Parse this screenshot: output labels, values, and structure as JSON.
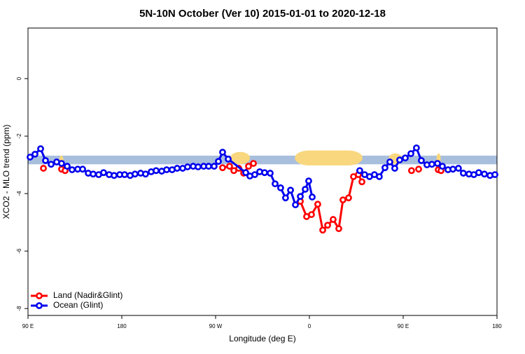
{
  "chart_data": {
    "type": "line",
    "title": "5N-10N October (Ver 10)   2015-01-01 to 2020-12-18",
    "x_label": "Longitude (deg E)",
    "y_label": "XCO2 - MLO trend (ppm)",
    "xlim": [
      90,
      540
    ],
    "ylim": [
      -8.24,
      1.76
    ],
    "xticks": [
      {
        "value": 90,
        "label": "90 E"
      },
      {
        "value": 180,
        "label": "180"
      },
      {
        "value": 270,
        "label": "90 W"
      },
      {
        "value": 360,
        "label": "0"
      },
      {
        "value": 450,
        "label": "90 E"
      },
      {
        "value": 540,
        "label": "180"
      }
    ],
    "yticks": [
      0,
      -2,
      -4,
      -6,
      -8
    ],
    "legend": "bottom-left",
    "band": {
      "ylim": [
        -2.98,
        -2.68
      ],
      "color": "#a8bedd"
    },
    "highlights": [
      {
        "xlim": [
          284,
          303
        ],
        "ylim": [
          -2.98,
          -2.55
        ],
        "color": "#f9d77e"
      },
      {
        "xlim": [
          346,
          411
        ],
        "ylim": [
          -3.02,
          -2.5
        ],
        "color": "#f9d77e"
      },
      {
        "xlim": [
          120,
          124
        ],
        "ylim": [
          -2.98,
          -2.68
        ],
        "color": "#f9d77e"
      },
      {
        "xlim": [
          436,
          449
        ],
        "ylim": [
          -2.98,
          -2.6
        ],
        "color": "#f9d77e"
      },
      {
        "xlim": [
          482,
          486
        ],
        "ylim": [
          -2.98,
          -2.6
        ],
        "color": "#f9d77e"
      }
    ],
    "series": [
      {
        "name": "Land (Nadir&Glint)",
        "color": "#ff0000",
        "x": [
          104.8,
          null,
          122.2,
          125.6,
          null,
          276.7,
          283.4,
          287.5,
          292.2,
          296.9,
          301.6,
          306.3,
          null,
          351.3,
          357.3,
          362.0,
          368.0,
          372.8,
          377.5,
          382.8,
          388.2,
          392.2,
          397.6,
          402.3,
          407.0,
          410.4,
          null,
          458.0,
          null,
          464.8,
          null,
          483.6,
          486.3
        ],
        "values": [
          -3.12,
          null,
          -3.15,
          -3.2,
          null,
          -3.1,
          -3.05,
          -3.2,
          -3.12,
          -3.29,
          -3.05,
          -2.95,
          null,
          -4.27,
          -4.8,
          -4.73,
          -4.37,
          -5.27,
          -5.1,
          -4.9,
          -5.22,
          -4.22,
          -4.15,
          -3.41,
          -3.34,
          -3.59,
          null,
          -3.2,
          null,
          -3.15,
          null,
          -3.17,
          -3.2
        ]
      },
      {
        "name": "Ocean (Glint)",
        "color": "#0000ee",
        "x": [
          92.0,
          96.7,
          102.1,
          106.8,
          112.2,
          117.5,
          122.2,
          127.6,
          132.3,
          137.7,
          142.4,
          147.8,
          152.5,
          157.8,
          162.5,
          167.9,
          172.6,
          178.0,
          182.7,
          188.0,
          192.7,
          198.1,
          202.8,
          208.2,
          212.9,
          218.3,
          223.0,
          228.3,
          233.1,
          238.4,
          243.1,
          248.5,
          253.2,
          258.6,
          263.3,
          268.6,
          272.7,
          276.7,
          282.1,
          298.9,
          302.9,
          307.6,
          312.3,
          317.0,
          322.4,
          327.1,
          332.4,
          337.1,
          341.9,
          346.6,
          351.3,
          356.0,
          359.3,
          362.7,
          null,
          408.3,
          413.0,
          417.7,
          422.4,
          427.1,
          432.5,
          437.2,
          441.9,
          446.6,
          452.0,
          457.4,
          462.7,
          467.4,
          472.8,
          477.5,
          482.9,
          487.6,
          493.0,
          497.7,
          503.0,
          507.7,
          513.1,
          517.8,
          522.5,
          527.9,
          533.3,
          538.0
        ],
        "values": [
          -2.73,
          -2.63,
          -2.44,
          -2.85,
          -2.98,
          -2.9,
          -2.95,
          -3.05,
          -3.17,
          -3.15,
          -3.15,
          -3.29,
          -3.32,
          -3.34,
          -3.27,
          -3.34,
          -3.37,
          -3.34,
          -3.34,
          -3.37,
          -3.32,
          -3.29,
          -3.32,
          -3.24,
          -3.2,
          -3.22,
          -3.17,
          -3.17,
          -3.12,
          -3.12,
          -3.07,
          -3.05,
          -3.07,
          -3.05,
          -3.05,
          -3.05,
          -2.88,
          -2.56,
          -2.8,
          -3.27,
          -3.39,
          -3.34,
          -3.24,
          -3.27,
          -3.29,
          -3.66,
          -3.8,
          -4.15,
          -3.88,
          -4.39,
          -4.1,
          -3.85,
          -3.56,
          -4.12,
          null,
          -3.2,
          -3.34,
          -3.41,
          -3.34,
          -3.41,
          -3.1,
          -2.9,
          -3.12,
          -2.83,
          -2.76,
          -2.61,
          -2.41,
          -2.85,
          -3.0,
          -2.98,
          -2.95,
          -3.05,
          -3.17,
          -3.15,
          -3.12,
          -3.29,
          -3.32,
          -3.34,
          -3.27,
          -3.32,
          -3.37,
          -3.34
        ]
      }
    ]
  }
}
